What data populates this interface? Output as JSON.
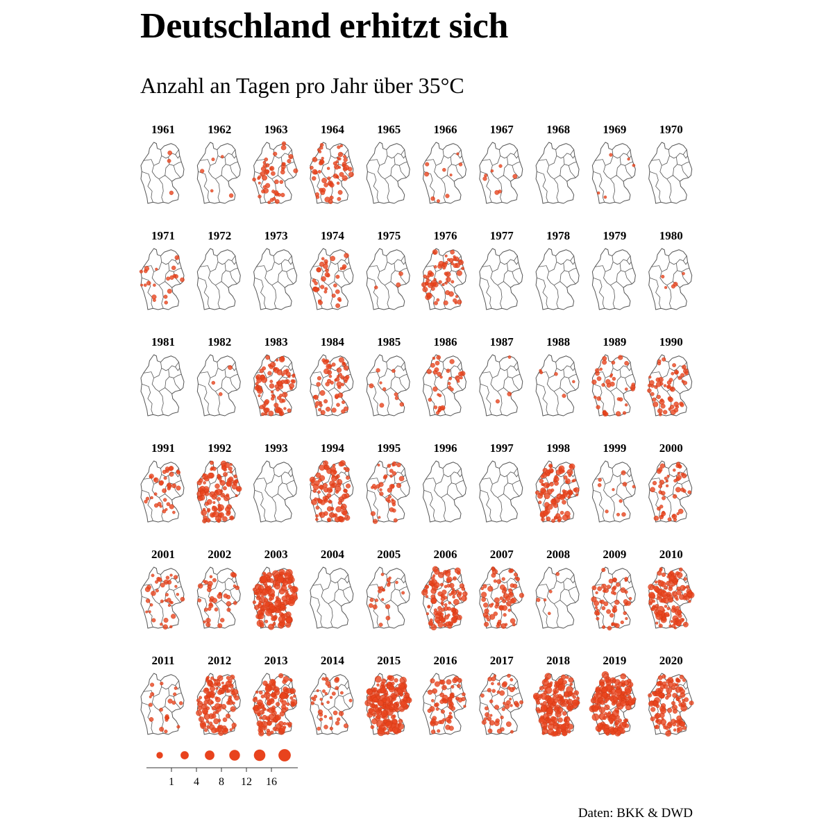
{
  "title": "Deutschland erhitzt sich",
  "subtitle": "Anzahl an Tagen pro Jahr über 35°C",
  "source": "Daten: BKK & DWD",
  "colors": {
    "dot": "#e8431d",
    "dot_stroke": "#c93512",
    "map_outline": "#555555"
  },
  "chart_data": {
    "type": "scatter",
    "title": "Deutschland erhitzt sich",
    "subtitle": "Anzahl an Tagen pro Jahr über 35°C",
    "xlabel": "",
    "ylabel": "",
    "legend": {
      "placement": "bottom-left",
      "ticks": [
        "1",
        "4",
        "8",
        "12",
        "16"
      ],
      "values": [
        1,
        4,
        8,
        12,
        16,
        20
      ]
    },
    "panels": [
      {
        "year": "1961",
        "coverage": 0.02
      },
      {
        "year": "1962",
        "coverage": 0.03
      },
      {
        "year": "1963",
        "coverage": 0.25
      },
      {
        "year": "1964",
        "coverage": 0.32
      },
      {
        "year": "1965",
        "coverage": 0.0
      },
      {
        "year": "1966",
        "coverage": 0.05
      },
      {
        "year": "1967",
        "coverage": 0.04
      },
      {
        "year": "1968",
        "coverage": 0.0
      },
      {
        "year": "1969",
        "coverage": 0.03
      },
      {
        "year": "1970",
        "coverage": 0.0
      },
      {
        "year": "1971",
        "coverage": 0.12
      },
      {
        "year": "1972",
        "coverage": 0.0
      },
      {
        "year": "1973",
        "coverage": 0.0
      },
      {
        "year": "1974",
        "coverage": 0.2
      },
      {
        "year": "1975",
        "coverage": 0.02
      },
      {
        "year": "1976",
        "coverage": 0.35
      },
      {
        "year": "1977",
        "coverage": 0.0
      },
      {
        "year": "1978",
        "coverage": 0.0
      },
      {
        "year": "1979",
        "coverage": 0.0
      },
      {
        "year": "1980",
        "coverage": 0.03
      },
      {
        "year": "1981",
        "coverage": 0.0
      },
      {
        "year": "1982",
        "coverage": 0.02
      },
      {
        "year": "1983",
        "coverage": 0.45
      },
      {
        "year": "1984",
        "coverage": 0.3
      },
      {
        "year": "1985",
        "coverage": 0.05
      },
      {
        "year": "1986",
        "coverage": 0.18
      },
      {
        "year": "1987",
        "coverage": 0.02
      },
      {
        "year": "1988",
        "coverage": 0.03
      },
      {
        "year": "1989",
        "coverage": 0.2
      },
      {
        "year": "1990",
        "coverage": 0.3
      },
      {
        "year": "1991",
        "coverage": 0.2
      },
      {
        "year": "1992",
        "coverage": 0.55
      },
      {
        "year": "1993",
        "coverage": 0.0
      },
      {
        "year": "1994",
        "coverage": 0.5
      },
      {
        "year": "1995",
        "coverage": 0.2
      },
      {
        "year": "1996",
        "coverage": 0.0
      },
      {
        "year": "1997",
        "coverage": 0.0
      },
      {
        "year": "1998",
        "coverage": 0.5
      },
      {
        "year": "1999",
        "coverage": 0.06
      },
      {
        "year": "2000",
        "coverage": 0.25
      },
      {
        "year": "2001",
        "coverage": 0.2
      },
      {
        "year": "2002",
        "coverage": 0.2
      },
      {
        "year": "2003",
        "coverage": 0.9
      },
      {
        "year": "2004",
        "coverage": 0.0
      },
      {
        "year": "2005",
        "coverage": 0.12
      },
      {
        "year": "2006",
        "coverage": 0.6
      },
      {
        "year": "2007",
        "coverage": 0.35
      },
      {
        "year": "2008",
        "coverage": 0.03
      },
      {
        "year": "2009",
        "coverage": 0.3
      },
      {
        "year": "2010",
        "coverage": 0.7
      },
      {
        "year": "2011",
        "coverage": 0.12
      },
      {
        "year": "2012",
        "coverage": 0.6
      },
      {
        "year": "2013",
        "coverage": 0.7
      },
      {
        "year": "2014",
        "coverage": 0.2
      },
      {
        "year": "2015",
        "coverage": 0.95
      },
      {
        "year": "2016",
        "coverage": 0.35
      },
      {
        "year": "2017",
        "coverage": 0.25
      },
      {
        "year": "2018",
        "coverage": 0.85
      },
      {
        "year": "2019",
        "coverage": 0.9
      },
      {
        "year": "2020",
        "coverage": 0.6
      }
    ]
  }
}
